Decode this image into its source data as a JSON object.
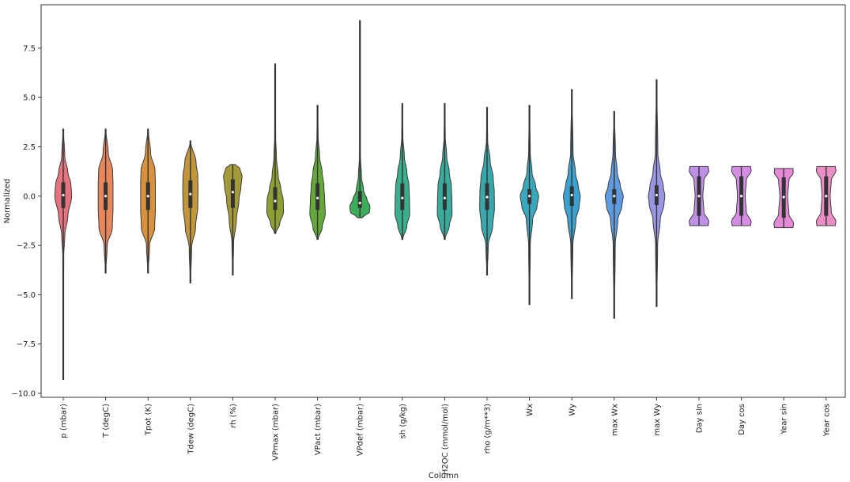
{
  "chart_data": {
    "type": "violin",
    "xlabel": "Column",
    "ylabel": "Normalized",
    "ylim": [
      -10.2,
      9.7
    ],
    "yticks": [
      7.5,
      5.0,
      2.5,
      0.0,
      -2.5,
      -5.0,
      -7.5,
      -10.0
    ],
    "ytick_labels": [
      "7.5",
      "5.0",
      "2.5",
      "0.0",
      "−2.5",
      "−5.0",
      "−7.5",
      "−10.0"
    ],
    "grid": false,
    "legend": "none",
    "categories": [
      "p (mbar)",
      "T (degC)",
      "Tpot (K)",
      "Tdew (degC)",
      "rh (%)",
      "VPmax (mbar)",
      "VPact (mbar)",
      "VPdef (mbar)",
      "sh (g/kg)",
      "H2OC (mmol/mol)",
      "rho (g/m**3)",
      "Wx",
      "Wy",
      "max Wx",
      "max Wy",
      "Day sin",
      "Day cos",
      "Year sin",
      "Year cos"
    ],
    "series": [
      {
        "min": -9.3,
        "max": 3.4,
        "q1": -0.6,
        "median": 0.05,
        "q3": 0.7,
        "color": "#e8737d",
        "profile": [
          [
            -9.3,
            0.02
          ],
          [
            -3,
            0.05
          ],
          [
            -2,
            0.15
          ],
          [
            -1,
            0.45
          ],
          [
            0,
            0.82
          ],
          [
            0.6,
            0.75
          ],
          [
            1.2,
            0.45
          ],
          [
            2,
            0.15
          ],
          [
            3.4,
            0.02
          ]
        ]
      },
      {
        "min": -3.9,
        "max": 3.4,
        "q1": -0.7,
        "median": 0.0,
        "q3": 0.7,
        "color": "#e8865c",
        "profile": [
          [
            -3.9,
            0.02
          ],
          [
            -2.5,
            0.15
          ],
          [
            -1.6,
            0.65
          ],
          [
            -0.6,
            0.72
          ],
          [
            0,
            0.72
          ],
          [
            0.6,
            0.72
          ],
          [
            1.3,
            0.68
          ],
          [
            2.2,
            0.25
          ],
          [
            3.4,
            0.02
          ]
        ]
      },
      {
        "min": -3.9,
        "max": 3.4,
        "q1": -0.7,
        "median": 0.0,
        "q3": 0.7,
        "color": "#d8913c",
        "profile": [
          [
            -3.9,
            0.02
          ],
          [
            -2.5,
            0.15
          ],
          [
            -1.6,
            0.65
          ],
          [
            -0.6,
            0.72
          ],
          [
            0,
            0.72
          ],
          [
            0.6,
            0.72
          ],
          [
            1.3,
            0.68
          ],
          [
            2.2,
            0.25
          ],
          [
            3.4,
            0.02
          ]
        ]
      },
      {
        "min": -4.4,
        "max": 2.8,
        "q1": -0.6,
        "median": 0.1,
        "q3": 0.8,
        "color": "#c2953a",
        "profile": [
          [
            -4.4,
            0.02
          ],
          [
            -2.6,
            0.12
          ],
          [
            -1.6,
            0.5
          ],
          [
            -0.5,
            0.72
          ],
          [
            0.3,
            0.74
          ],
          [
            1,
            0.72
          ],
          [
            1.7,
            0.55
          ],
          [
            2.8,
            0.02
          ]
        ]
      },
      {
        "min": -4.0,
        "max": 1.6,
        "q1": -0.6,
        "median": 0.2,
        "q3": 0.85,
        "color": "#a49b38",
        "profile": [
          [
            -4,
            0.02
          ],
          [
            -2.4,
            0.08
          ],
          [
            -1.2,
            0.35
          ],
          [
            -0.2,
            0.6
          ],
          [
            0.5,
            0.8
          ],
          [
            1,
            0.9
          ],
          [
            1.4,
            0.7
          ],
          [
            1.6,
            0.25
          ]
        ]
      },
      {
        "min": -1.9,
        "max": 6.7,
        "q1": -0.7,
        "median": -0.25,
        "q3": 0.45,
        "color": "#8ca033",
        "profile": [
          [
            -1.9,
            0.05
          ],
          [
            -1.4,
            0.45
          ],
          [
            -0.8,
            0.82
          ],
          [
            -0.2,
            0.78
          ],
          [
            0.4,
            0.55
          ],
          [
            1,
            0.3
          ],
          [
            2,
            0.12
          ],
          [
            3,
            0.05
          ],
          [
            6.7,
            0.01
          ]
        ]
      },
      {
        "min": -2.2,
        "max": 4.6,
        "q1": -0.7,
        "median": -0.1,
        "q3": 0.65,
        "color": "#64a83a",
        "profile": [
          [
            -2.2,
            0.05
          ],
          [
            -1.6,
            0.45
          ],
          [
            -0.9,
            0.75
          ],
          [
            -0.2,
            0.7
          ],
          [
            0.5,
            0.62
          ],
          [
            1.2,
            0.45
          ],
          [
            2,
            0.2
          ],
          [
            3,
            0.06
          ],
          [
            4.6,
            0.01
          ]
        ]
      },
      {
        "min": -1.1,
        "max": 8.9,
        "q1": -0.6,
        "median": -0.35,
        "q3": 0.25,
        "color": "#3cad5a",
        "profile": [
          [
            -1.1,
            0.2
          ],
          [
            -0.8,
            0.95
          ],
          [
            -0.5,
            0.98
          ],
          [
            -0.2,
            0.7
          ],
          [
            0.3,
            0.35
          ],
          [
            1,
            0.15
          ],
          [
            2,
            0.05
          ],
          [
            4,
            0.02
          ],
          [
            8.9,
            0.01
          ]
        ]
      },
      {
        "min": -2.2,
        "max": 4.7,
        "q1": -0.7,
        "median": -0.1,
        "q3": 0.65,
        "color": "#3aad8c",
        "profile": [
          [
            -2.2,
            0.04
          ],
          [
            -1.5,
            0.45
          ],
          [
            -0.9,
            0.72
          ],
          [
            -0.2,
            0.7
          ],
          [
            0.5,
            0.65
          ],
          [
            1.2,
            0.45
          ],
          [
            2,
            0.2
          ],
          [
            3,
            0.06
          ],
          [
            4.7,
            0.01
          ]
        ]
      },
      {
        "min": -2.2,
        "max": 4.7,
        "q1": -0.7,
        "median": -0.1,
        "q3": 0.65,
        "color": "#38ab9c",
        "profile": [
          [
            -2.2,
            0.04
          ],
          [
            -1.5,
            0.45
          ],
          [
            -0.9,
            0.72
          ],
          [
            -0.2,
            0.7
          ],
          [
            0.5,
            0.65
          ],
          [
            1.2,
            0.45
          ],
          [
            2,
            0.2
          ],
          [
            3,
            0.06
          ],
          [
            4.7,
            0.01
          ]
        ]
      },
      {
        "min": -4.0,
        "max": 4.5,
        "q1": -0.7,
        "median": -0.05,
        "q3": 0.65,
        "color": "#38a8ac",
        "profile": [
          [
            -4,
            0.02
          ],
          [
            -2.5,
            0.12
          ],
          [
            -1.5,
            0.55
          ],
          [
            -0.6,
            0.72
          ],
          [
            0.2,
            0.7
          ],
          [
            0.9,
            0.6
          ],
          [
            1.8,
            0.3
          ],
          [
            2.8,
            0.06
          ],
          [
            4.5,
            0.01
          ]
        ]
      },
      {
        "min": -5.5,
        "max": 4.6,
        "q1": -0.4,
        "median": 0.0,
        "q3": 0.35,
        "color": "#39a8bd",
        "profile": [
          [
            -5.5,
            0.02
          ],
          [
            -2.5,
            0.08
          ],
          [
            -1.2,
            0.3
          ],
          [
            -0.5,
            0.75
          ],
          [
            0,
            0.9
          ],
          [
            0.5,
            0.6
          ],
          [
            1.2,
            0.25
          ],
          [
            2.2,
            0.08
          ],
          [
            4.6,
            0.01
          ]
        ]
      },
      {
        "min": -5.2,
        "max": 5.4,
        "q1": -0.5,
        "median": 0.05,
        "q3": 0.5,
        "color": "#3aa2d0",
        "profile": [
          [
            -5.2,
            0.02
          ],
          [
            -2.5,
            0.1
          ],
          [
            -1.2,
            0.4
          ],
          [
            -0.5,
            0.72
          ],
          [
            0,
            0.82
          ],
          [
            0.5,
            0.62
          ],
          [
            1.2,
            0.35
          ],
          [
            2.2,
            0.12
          ],
          [
            5.4,
            0.01
          ]
        ]
      },
      {
        "min": -6.2,
        "max": 4.3,
        "q1": -0.4,
        "median": 0.0,
        "q3": 0.35,
        "color": "#5e9be0",
        "profile": [
          [
            -6.2,
            0.02
          ],
          [
            -2.5,
            0.1
          ],
          [
            -1.2,
            0.35
          ],
          [
            -0.5,
            0.75
          ],
          [
            0,
            0.88
          ],
          [
            0.5,
            0.6
          ],
          [
            1.2,
            0.3
          ],
          [
            2.2,
            0.12
          ],
          [
            4.3,
            0.01
          ]
        ]
      },
      {
        "min": -5.6,
        "max": 5.9,
        "q1": -0.45,
        "median": 0.05,
        "q3": 0.55,
        "color": "#9a96e6",
        "profile": [
          [
            -5.6,
            0.02
          ],
          [
            -2.5,
            0.1
          ],
          [
            -1.2,
            0.35
          ],
          [
            -0.4,
            0.72
          ],
          [
            0,
            0.8
          ],
          [
            0.5,
            0.65
          ],
          [
            1.2,
            0.35
          ],
          [
            2.2,
            0.12
          ],
          [
            5.9,
            0.01
          ]
        ]
      },
      {
        "min": -1.5,
        "max": 1.5,
        "q1": -1.0,
        "median": 0.0,
        "q3": 1.0,
        "color": "#c090e8",
        "profile": [
          [
            -1.5,
            0.9
          ],
          [
            -1.3,
            0.95
          ],
          [
            -0.8,
            0.48
          ],
          [
            0,
            0.38
          ],
          [
            0.8,
            0.48
          ],
          [
            1.3,
            0.95
          ],
          [
            1.5,
            0.9
          ]
        ]
      },
      {
        "min": -1.5,
        "max": 1.5,
        "q1": -1.0,
        "median": 0.0,
        "q3": 1.0,
        "color": "#d68ce4",
        "profile": [
          [
            -1.5,
            0.9
          ],
          [
            -1.3,
            0.95
          ],
          [
            -0.8,
            0.48
          ],
          [
            0,
            0.38
          ],
          [
            0.8,
            0.48
          ],
          [
            1.3,
            0.95
          ],
          [
            1.5,
            0.9
          ]
        ]
      },
      {
        "min": -1.6,
        "max": 1.4,
        "q1": -1.1,
        "median": -0.05,
        "q3": 0.95,
        "color": "#e68ad8",
        "profile": [
          [
            -1.6,
            0.9
          ],
          [
            -1.4,
            0.95
          ],
          [
            -0.9,
            0.5
          ],
          [
            0,
            0.38
          ],
          [
            0.8,
            0.5
          ],
          [
            1.2,
            0.92
          ],
          [
            1.4,
            0.9
          ]
        ]
      },
      {
        "min": -1.5,
        "max": 1.5,
        "q1": -1.0,
        "median": 0.0,
        "q3": 1.0,
        "color": "#ea8ec4",
        "profile": [
          [
            -1.5,
            0.9
          ],
          [
            -1.3,
            0.95
          ],
          [
            -0.8,
            0.5
          ],
          [
            0,
            0.4
          ],
          [
            0.8,
            0.5
          ],
          [
            1.3,
            0.95
          ],
          [
            1.5,
            0.9
          ]
        ]
      }
    ]
  }
}
